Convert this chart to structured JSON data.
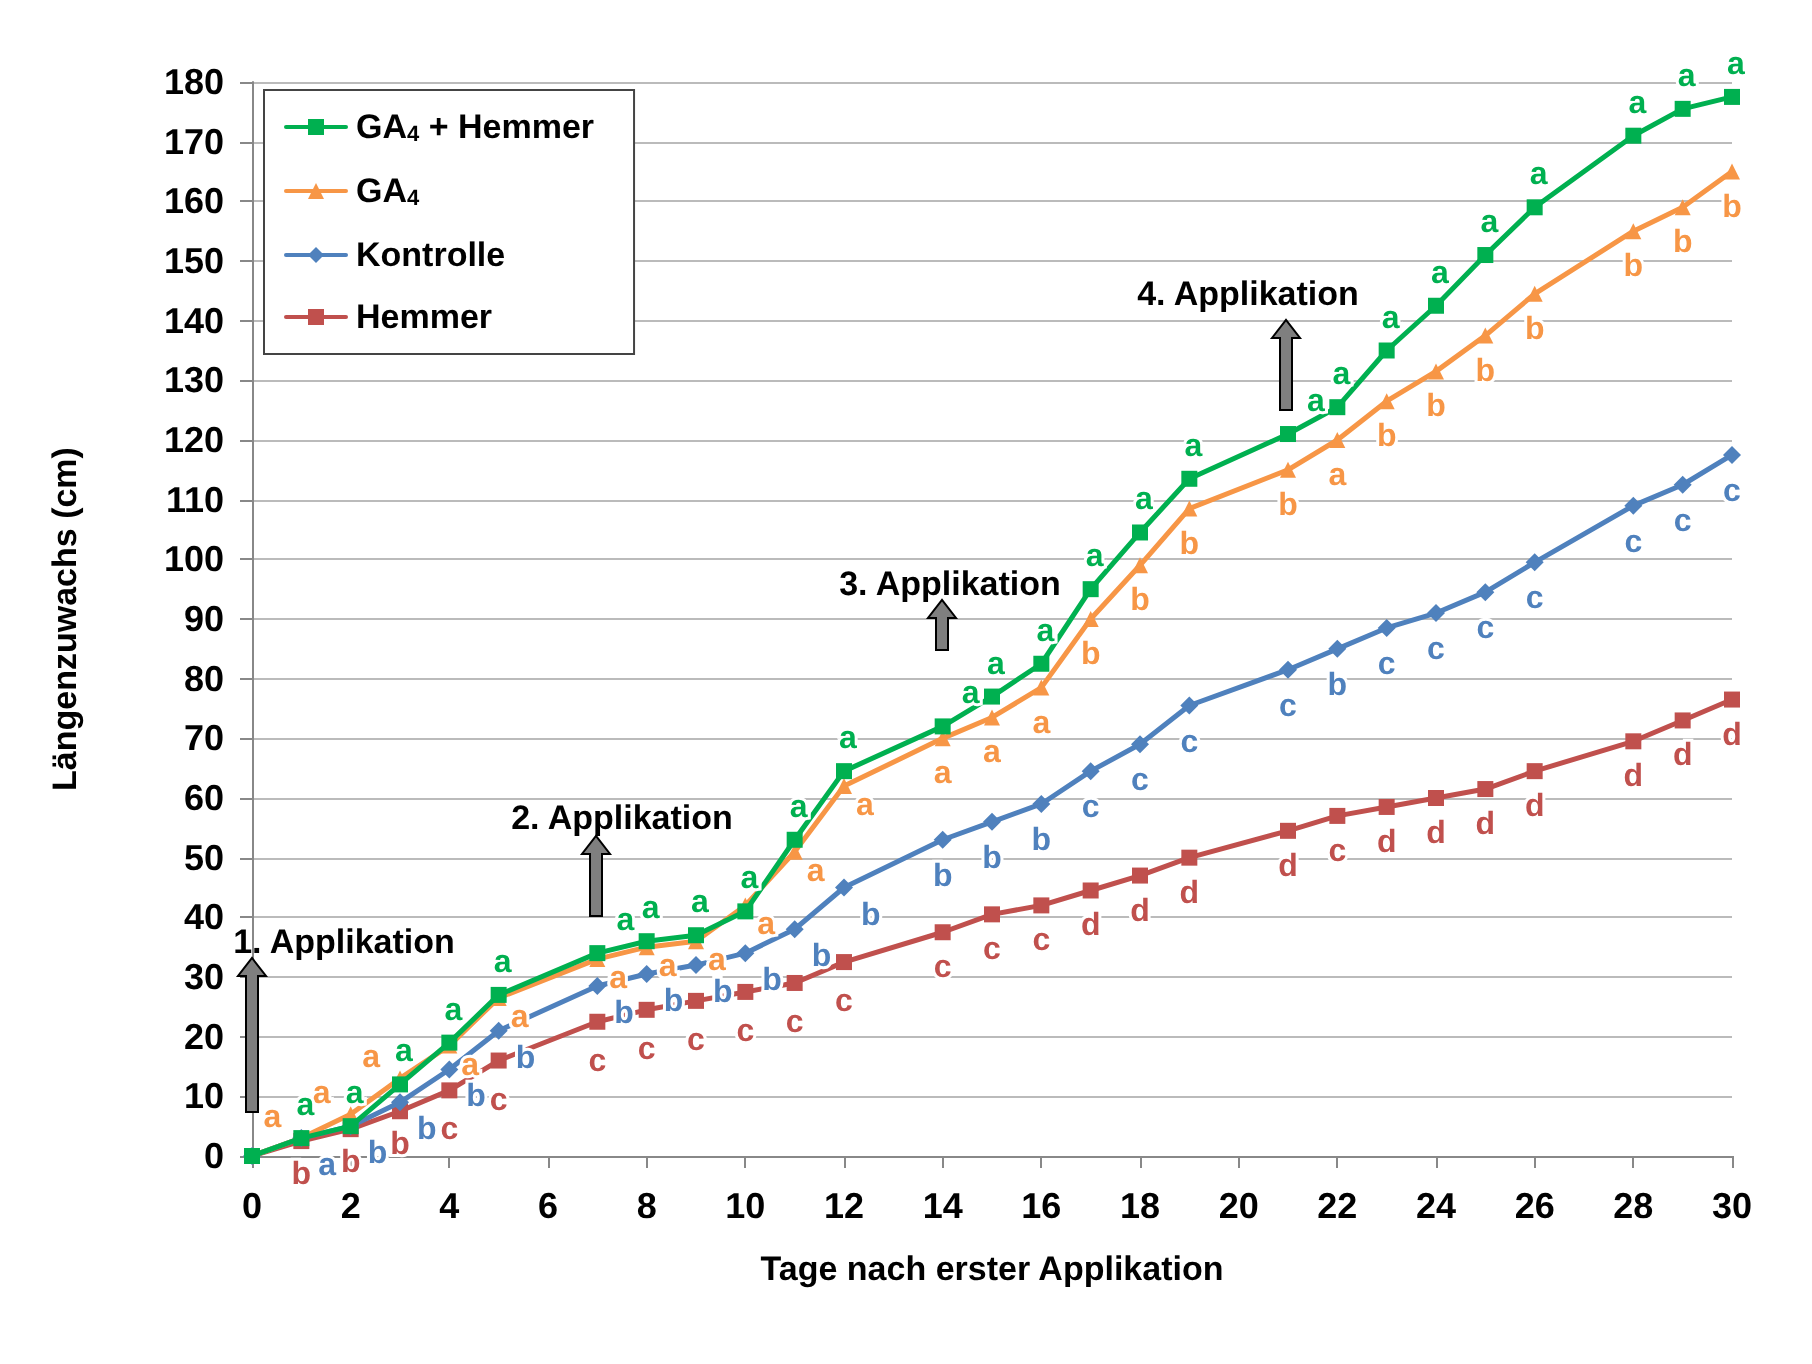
{
  "chart_data": {
    "type": "line",
    "xlabel": "Tage nach erster Applikation",
    "ylabel": "Längenzuwachs (cm)",
    "x": [
      0,
      1,
      2,
      3,
      4,
      5,
      7,
      8,
      9,
      10,
      11,
      12,
      14,
      15,
      16,
      17,
      18,
      19,
      21,
      22,
      23,
      24,
      25,
      26,
      28,
      29,
      30
    ],
    "series": [
      {
        "name": "GA$_{4}$ + Hemmer",
        "color": "#00b050",
        "marker": "square",
        "values": [
          0,
          3,
          5,
          12,
          19,
          27,
          34,
          36,
          37,
          41,
          53,
          64.5,
          72,
          77,
          82.5,
          95,
          104.5,
          113.5,
          121,
          125.5,
          135,
          142.5,
          151,
          159,
          171,
          175.5,
          177.5
        ],
        "value_labels": [
          null,
          "a",
          "a",
          "a",
          "a",
          "a",
          "a",
          "a",
          "a",
          "a",
          "a",
          "a",
          "a",
          "a",
          "a",
          "a",
          "a",
          "a",
          "a",
          "a",
          "a",
          "a",
          "a",
          "a",
          "a",
          "a",
          "a"
        ]
      },
      {
        "name": "GA$_{4}$",
        "color": "#f79646",
        "marker": "triangle",
        "values": [
          0,
          3,
          7,
          13,
          18.5,
          26.5,
          33,
          35,
          36,
          42,
          51,
          62,
          70,
          73.5,
          78.5,
          90,
          99,
          108.5,
          115,
          120,
          126.5,
          131.5,
          137.5,
          144.5,
          155,
          159,
          165
        ],
        "value_labels": [
          null,
          "a",
          "a",
          "a",
          "a",
          "a",
          "a",
          "a",
          "a",
          "a",
          "a",
          "a",
          "a",
          "a",
          "a",
          "b",
          "b",
          "b",
          "b",
          "a",
          "b",
          "b",
          "b",
          "b",
          "b",
          "b",
          "b"
        ]
      },
      {
        "name": "Kontrolle",
        "color": "#4f81bd",
        "marker": "diamond",
        "values": [
          0,
          3,
          5,
          9,
          14.5,
          21,
          28.5,
          30.5,
          32,
          34,
          38,
          45,
          53,
          56,
          59,
          64.5,
          69,
          75.5,
          81.5,
          85,
          88.5,
          91,
          94.5,
          99.5,
          109,
          112.5,
          117.5
        ],
        "value_labels": [
          null,
          "a",
          "b",
          "b",
          "b",
          "b",
          "b",
          "b",
          "b",
          "b",
          "b",
          "b",
          "b",
          "b",
          "b",
          "c",
          "c",
          "c",
          "c",
          "b",
          "c",
          "c",
          "c",
          "c",
          "c",
          "c",
          "c"
        ]
      },
      {
        "name": "Hemmer",
        "color": "#c0504d",
        "marker": "square",
        "values": [
          0,
          2.5,
          4.5,
          7.5,
          11,
          16,
          22.5,
          24.5,
          26,
          27.5,
          29,
          32.5,
          37.5,
          40.5,
          42,
          44.5,
          47,
          50,
          54.5,
          57,
          58.5,
          60,
          61.5,
          64.5,
          69.5,
          73,
          76.5
        ],
        "value_labels": [
          null,
          "b",
          "b",
          "b",
          "c",
          "c",
          "c",
          "c",
          "c",
          "c",
          "c",
          "c",
          "c",
          "c",
          "c",
          "d",
          "d",
          "d",
          "d",
          "c",
          "d",
          "d",
          "d",
          "d",
          "d",
          "d",
          "d"
        ]
      }
    ],
    "xlim": [
      0,
      30
    ],
    "xticks": [
      0,
      2,
      4,
      6,
      8,
      10,
      12,
      14,
      16,
      18,
      20,
      22,
      24,
      26,
      28,
      30
    ],
    "ylim": [
      0,
      180
    ],
    "yticks": [
      0,
      10,
      20,
      30,
      40,
      50,
      60,
      70,
      80,
      90,
      100,
      110,
      120,
      130,
      140,
      150,
      160,
      170,
      180
    ],
    "grid": "y",
    "legend": "top left",
    "annotations": [
      "1. Applikation",
      "2. Applikation",
      "3. Applikation",
      "4. Applikation"
    ]
  }
}
